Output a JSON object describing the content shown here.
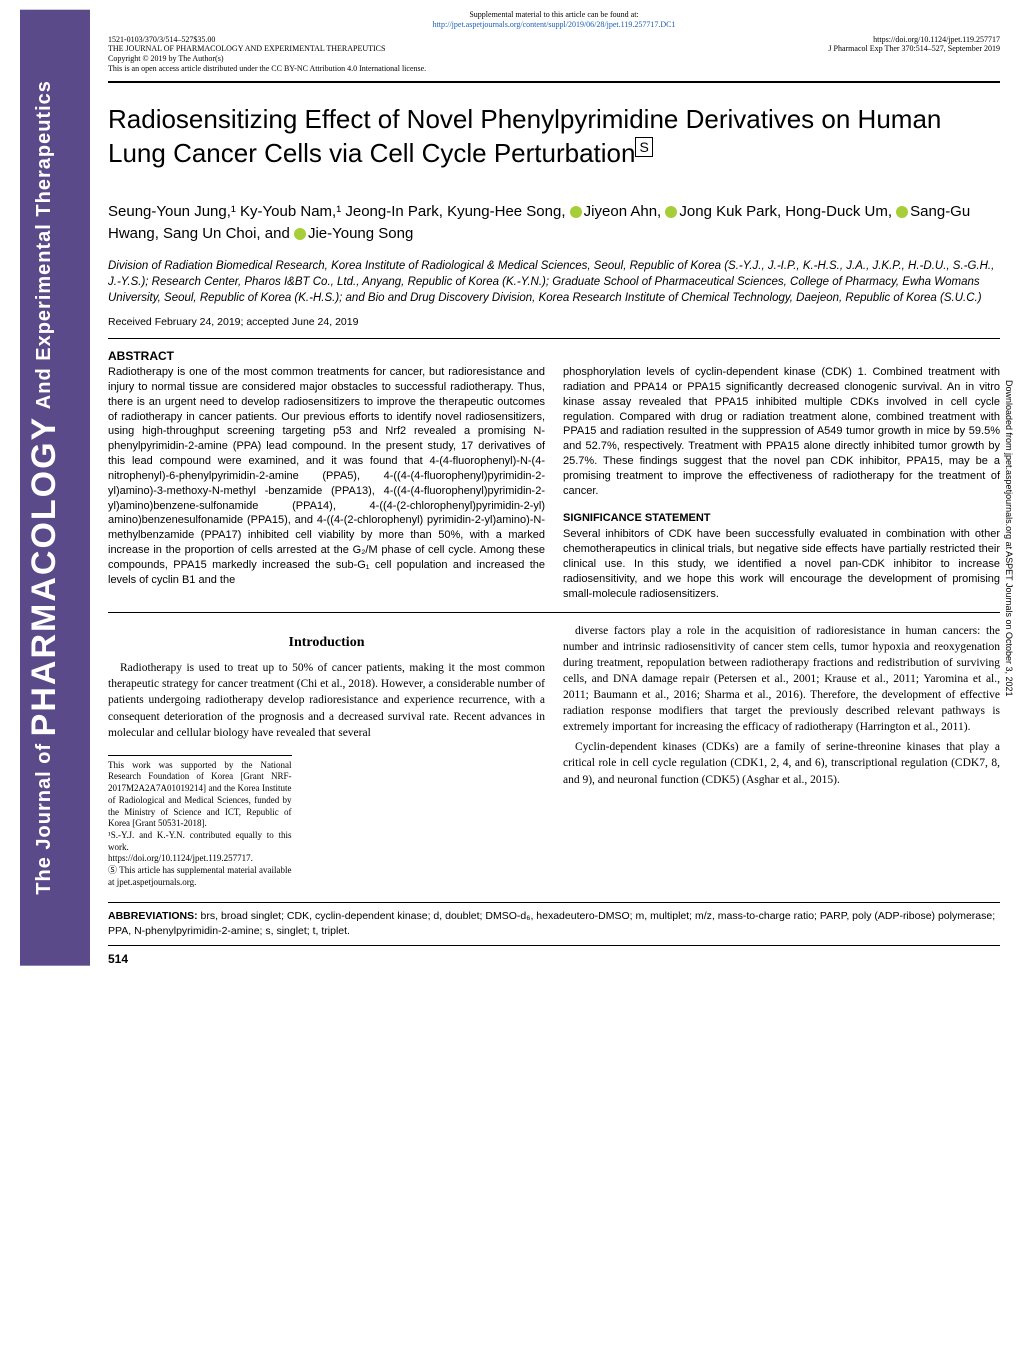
{
  "colors": {
    "sidebar_bg": "#5b4a8a",
    "link": "#1a5fb4",
    "orcid": "#a6ce39"
  },
  "top_meta": {
    "supp_line": "Supplemental material to this article can be found at:",
    "supp_url": "http://jpet.aspetjournals.org/content/suppl/2019/06/28/jpet.119.257717.DC1",
    "left1": "1521-0103/370/3/514–527$35.00",
    "left2": "THE JOURNAL OF PHARMACOLOGY AND EXPERIMENTAL THERAPEUTICS",
    "left3": "Copyright © 2019 by The Author(s)",
    "left4": "This is an open access article distributed under the CC BY-NC Attribution 4.0 International license.",
    "right1": "https://doi.org/10.1124/jpet.119.257717",
    "right2": "J Pharmacol Exp Ther 370:514–527, September 2019"
  },
  "sidebar": {
    "line1": "The Journal of",
    "pharm": "PHARMACOLOGY",
    "line2": "And Experimental Therapeutics"
  },
  "title": "Radiosensitizing Effect of Novel Phenylpyrimidine Derivatives on Human Lung Cancer Cells via Cell Cycle Perturbation",
  "authors_html": "Seung-Youn Jung,¹ Ky-Youb Nam,¹ Jeong-In Park, Kyung-Hee Song, <span class='orcid'></span>Jiyeon Ahn, <span class='orcid'></span>Jong Kuk Park, Hong-Duck Um, <span class='orcid'></span>Sang-Gu Hwang, Sang Un Choi, and <span class='orcid'></span>Jie-Young Song",
  "affiliations": "Division of Radiation Biomedical Research, Korea Institute of Radiological & Medical Sciences, Seoul, Republic of Korea (S.-Y.J., J.-I.P., K.-H.S., J.A., J.K.P., H.-D.U., S.-G.H., J.-Y.S.); Research Center, Pharos I&BT Co., Ltd., Anyang, Republic of Korea (K.-Y.N.); Graduate School of Pharmaceutical Sciences, College of Pharmacy, Ewha Womans University, Seoul, Republic of Korea (K.-H.S.); and Bio and Drug Discovery Division, Korea Research Institute of Chemical Technology, Daejeon, Republic of Korea (S.U.C.)",
  "received": "Received February 24, 2019; accepted June 24, 2019",
  "abstract_label": "ABSTRACT",
  "abstract_left": "Radiotherapy is one of the most common treatments for cancer, but radioresistance and injury to normal tissue are considered major obstacles to successful radiotherapy. Thus, there is an urgent need to develop radiosensitizers to improve the therapeutic outcomes of radiotherapy in cancer patients. Our previous efforts to identify novel radiosensitizers, using high-throughput screening targeting p53 and Nrf2 revealed a promising N-phenylpyrimidin-2-amine (PPA) lead compound. In the present study, 17 derivatives of this lead compound were examined, and it was found that 4-(4-fluorophenyl)-N-(4-nitrophenyl)-6-phenylpyrimidin-2-amine (PPA5), 4-((4-(4-fluorophenyl)pyrimidin-2-yl)amino)-3-methoxy-N-methyl -benzamide (PPA13), 4-((4-(4-fluorophenyl)pyrimidin-2-yl)amino)benzene-sulfonamide (PPA14), 4-((4-(2-chlorophenyl)pyrimidin-2-yl) amino)benzenesulfonamide (PPA15), and 4-((4-(2-chlorophenyl) pyrimidin-2-yl)amino)-N-methylbenzamide (PPA17) inhibited cell viability by more than 50%, with a marked increase in the proportion of cells arrested at the G₂/M phase of cell cycle. Among these compounds, PPA15 markedly increased the sub-G₁ cell population and increased the levels of cyclin B1 and the",
  "abstract_right": "phosphorylation levels of cyclin-dependent kinase (CDK) 1. Combined treatment with radiation and PPA14 or PPA15 significantly decreased clonogenic survival. An in vitro kinase assay revealed that PPA15 inhibited multiple CDKs involved in cell cycle regulation. Compared with drug or radiation treatment alone, combined treatment with PPA15 and radiation resulted in the suppression of A549 tumor growth in mice by 59.5% and 52.7%, respectively. Treatment with PPA15 alone directly inhibited tumor growth by 25.7%. These findings suggest that the novel pan CDK inhibitor, PPA15, may be a promising treatment to improve the effectiveness of radiotherapy for the treatment of cancer.",
  "sig_label": "SIGNIFICANCE STATEMENT",
  "sig_text": "Several inhibitors of CDK have been successfully evaluated in combination with other chemotherapeutics in clinical trials, but negative side effects have partially restricted their clinical use. In this study, we identified a novel pan-CDK inhibitor to increase radiosensitivity, and we hope this work will encourage the development of promising small-molecule radiosensitizers.",
  "intro_label": "Introduction",
  "intro_left": "Radiotherapy is used to treat up to 50% of cancer patients, making it the most common therapeutic strategy for cancer treatment (Chi et al., 2018). However, a considerable number of patients undergoing radiotherapy develop radioresistance and experience recurrence, with a consequent deterioration of the prognosis and a decreased survival rate. Recent advances in molecular and cellular biology have revealed that several",
  "intro_right_p1": "diverse factors play a role in the acquisition of radioresistance in human cancers: the number and intrinsic radiosensitivity of cancer stem cells, tumor hypoxia and reoxygenation during treatment, repopulation between radiotherapy fractions and redistribution of surviving cells, and DNA damage repair (Petersen et al., 2001; Krause et al., 2011; Yaromina et al., 2011; Baumann et al., 2016; Sharma et al., 2016). Therefore, the development of effective radiation response modifiers that target the previously described relevant pathways is extremely important for increasing the efficacy of radiotherapy (Harrington et al., 2011).",
  "intro_right_p2": "Cyclin-dependent kinases (CDKs) are a family of serine-threonine kinases that play a critical role in cell cycle regulation (CDK1, 2, 4, and 6), transcriptional regulation (CDK7, 8, and 9), and neuronal function (CDK5) (Asghar et al., 2015).",
  "footnotes": {
    "fn1": "This work was supported by the National Research Foundation of Korea [Grant NRF-2017M2A2A7A01019214] and the Korea Institute of Radiological and Medical Sciences, funded by the Ministry of Science and ICT, Republic of Korea [Grant 50531-2018].",
    "fn2": "¹S.-Y.J. and K.-Y.N. contributed equally to this work.",
    "fn3": "https://doi.org/10.1124/jpet.119.257717.",
    "fn4": "Ⓢ This article has supplemental material available at jpet.aspetjournals.org."
  },
  "abbrev_label": "ABBREVIATIONS:",
  "abbrev_text": " brs, broad singlet; CDK, cyclin-dependent kinase; d, doublet; DMSO-d₆, hexadeutero-DMSO; m, multiplet; m/z, mass-to-charge ratio; PARP, poly (ADP-ribose) polymerase; PPA, N-phenylpyrimidin-2-amine; s, singlet; t, triplet.",
  "page_number": "514",
  "margin_note": "Downloaded from jpet.aspetjournals.org at ASPET Journals on October 3, 2021"
}
